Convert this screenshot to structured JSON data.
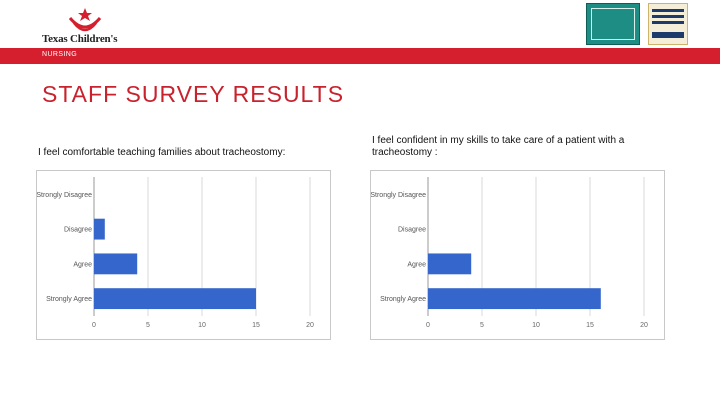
{
  "header": {
    "logo_text": "Texas Children's",
    "banner_label": "NURSING"
  },
  "page_title": "STAFF SURVEY RESULTS",
  "colors": {
    "brand_red": "#d51f2e",
    "title_red": "#c8222d",
    "bar_blue": "#3566cc"
  },
  "questions": [
    {
      "title": "I feel comfortable teaching families about tracheostomy:"
    },
    {
      "title": "I feel confident in my skills to take care of a patient with a tracheostomy :"
    }
  ],
  "chart_data": [
    {
      "type": "bar",
      "orientation": "horizontal",
      "categories": [
        "Strongly Disagree",
        "Disagree",
        "Agree",
        "Strongly Agree"
      ],
      "values": [
        0,
        1,
        4,
        15
      ],
      "xlim": [
        0,
        20
      ],
      "xticks": [
        0,
        5,
        10,
        15,
        20
      ],
      "grid": true
    },
    {
      "type": "bar",
      "orientation": "horizontal",
      "categories": [
        "Strongly Disagree",
        "Disagree",
        "Agree",
        "Strongly Agree"
      ],
      "values": [
        0,
        0,
        4,
        16
      ],
      "xlim": [
        0,
        20
      ],
      "xticks": [
        0,
        5,
        10,
        15,
        20
      ],
      "grid": true
    }
  ]
}
